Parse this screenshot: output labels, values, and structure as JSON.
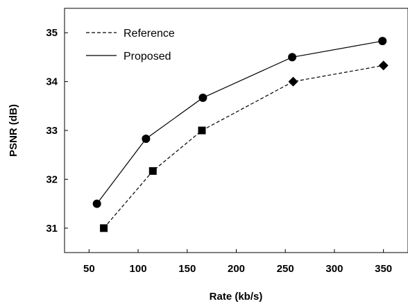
{
  "chart_data": {
    "type": "line",
    "title": "",
    "xlabel": "Rate (kb/s)",
    "ylabel": "PSNR (dB)",
    "xlim": [
      25,
      375
    ],
    "ylim": [
      30.5,
      35.5
    ],
    "xticks": [
      50,
      100,
      150,
      200,
      250,
      300,
      350
    ],
    "yticks": [
      31,
      32,
      33,
      34,
      35
    ],
    "grid": false,
    "legend_position": "top-left",
    "series": [
      {
        "name": "Reference",
        "style": "dashed",
        "color": "#000000",
        "markers": [
          "square",
          "square",
          "square",
          "diamond",
          "diamond"
        ],
        "x": [
          65,
          115,
          165,
          258,
          350
        ],
        "y": [
          31.0,
          32.17,
          33.0,
          34.0,
          34.33
        ]
      },
      {
        "name": "Proposed",
        "style": "solid",
        "color": "#000000",
        "markers": [
          "circle",
          "circle",
          "circle",
          "circle",
          "circle"
        ],
        "x": [
          58,
          108,
          166,
          257,
          349
        ],
        "y": [
          31.5,
          32.83,
          33.67,
          34.5,
          34.83
        ]
      }
    ]
  }
}
